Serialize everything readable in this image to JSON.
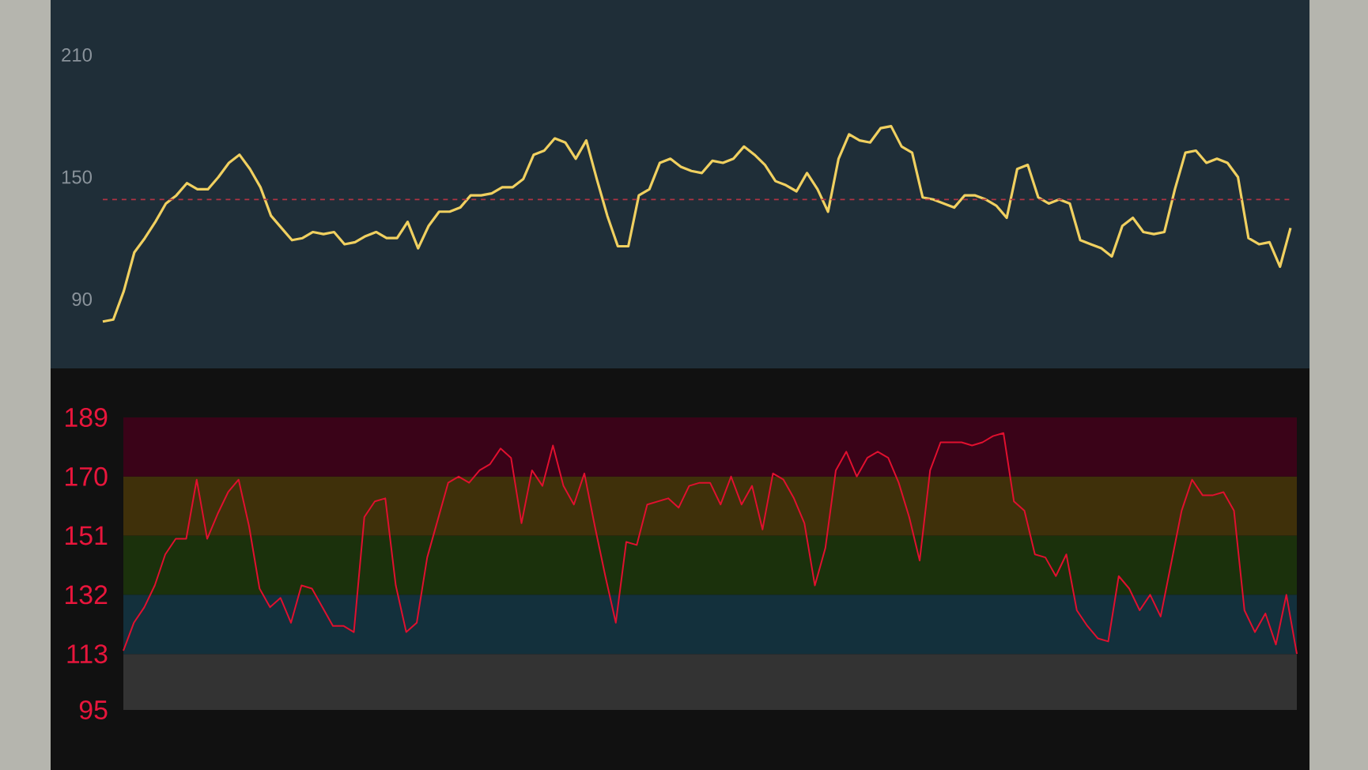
{
  "chart_data": [
    {
      "type": "line",
      "ylim": [
        56,
        237
      ],
      "yticks": [
        90,
        150,
        210
      ],
      "tick_labels": "y",
      "categories": [
        null,
        null,
        null,
        null,
        null,
        null,
        null,
        null,
        null,
        null,
        null,
        null,
        null,
        null,
        null,
        null,
        null,
        null,
        null,
        null,
        null,
        null,
        null,
        null,
        null,
        null,
        null,
        null,
        null,
        null,
        null,
        null,
        null,
        null,
        null,
        null,
        null,
        null,
        null,
        null,
        null,
        null,
        null,
        null,
        null,
        null,
        null,
        null,
        null,
        null,
        null,
        null,
        null,
        null,
        null,
        null,
        null,
        null,
        null,
        null,
        null,
        null,
        null,
        null,
        null,
        null,
        null,
        null,
        null,
        null,
        null,
        null,
        null,
        null,
        null,
        null,
        null,
        null,
        null,
        null,
        null,
        null,
        null,
        null,
        null,
        null,
        null,
        null,
        null,
        null,
        null,
        null,
        null,
        null,
        null,
        null,
        null,
        null,
        null,
        null,
        null,
        null,
        null,
        null,
        null,
        null,
        null,
        null,
        null,
        null,
        null,
        null,
        null,
        null
      ],
      "series": [
        {
          "color": "#f0d060",
          "values": [
            79,
            80,
            94,
            113,
            120,
            128,
            137,
            141,
            147,
            144,
            144,
            150,
            157,
            161,
            154,
            145,
            131,
            125,
            119,
            120,
            123,
            122,
            123,
            117,
            118,
            121,
            123,
            120,
            120,
            128,
            115,
            126,
            133,
            133,
            135,
            141,
            141,
            142,
            145,
            145,
            149,
            161,
            163,
            169,
            167,
            159,
            168,
            149,
            131,
            116,
            116,
            141,
            144,
            157,
            159,
            155,
            153,
            152,
            158,
            157,
            159,
            165,
            161,
            156,
            148,
            146,
            143,
            152,
            144,
            133,
            159,
            171,
            168,
            167,
            174,
            175,
            165,
            162,
            140,
            139,
            137,
            135,
            141,
            141,
            139,
            136,
            130,
            154,
            156,
            140,
            137,
            139,
            137,
            119,
            117,
            115,
            111,
            126,
            130,
            123,
            122,
            123,
            144,
            162,
            163,
            157,
            159,
            157,
            150,
            120,
            117,
            118,
            106,
            125
          ]
        }
      ],
      "ref_lines": [
        {
          "axis": "y",
          "value": 139,
          "color": "#b03444",
          "line_style": "dashed"
        }
      ]
    },
    {
      "type": "line",
      "ylim": [
        95,
        189
      ],
      "yticks": [
        95,
        113,
        132,
        151,
        170,
        189
      ],
      "tick_labels": "y",
      "categories": [
        null,
        null,
        null,
        null,
        null,
        null,
        null,
        null,
        null,
        null,
        null,
        null,
        null,
        null,
        null,
        null,
        null,
        null,
        null,
        null,
        null,
        null,
        null,
        null,
        null,
        null,
        null,
        null,
        null,
        null,
        null,
        null,
        null,
        null,
        null,
        null,
        null,
        null,
        null,
        null,
        null,
        null,
        null,
        null,
        null,
        null,
        null,
        null,
        null,
        null,
        null,
        null,
        null,
        null,
        null,
        null,
        null,
        null,
        null,
        null,
        null,
        null,
        null,
        null,
        null,
        null,
        null,
        null,
        null,
        null,
        null,
        null,
        null,
        null,
        null,
        null,
        null,
        null,
        null,
        null,
        null,
        null,
        null,
        null,
        null,
        null,
        null,
        null,
        null,
        null,
        null,
        null,
        null,
        null,
        null,
        null,
        null,
        null,
        null,
        null,
        null,
        null,
        null,
        null,
        null,
        null,
        null,
        null,
        null,
        null,
        null,
        null,
        null
      ],
      "series": [
        {
          "color": "#e0102f",
          "values": [
            114,
            123,
            128,
            135,
            145,
            150,
            150,
            169,
            150,
            158,
            165,
            169,
            154,
            134,
            128,
            131,
            123,
            135,
            134,
            128,
            122,
            122,
            120,
            157,
            162,
            163,
            135,
            120,
            123,
            144,
            156,
            168,
            170,
            168,
            172,
            174,
            179,
            176,
            155,
            172,
            167,
            180,
            167,
            161,
            171,
            154,
            138,
            123,
            149,
            148,
            161,
            162,
            163,
            160,
            167,
            168,
            168,
            161,
            170,
            161,
            167,
            153,
            171,
            169,
            163,
            155,
            135,
            147,
            172,
            178,
            170,
            176,
            178,
            176,
            168,
            157,
            143,
            172,
            181,
            181,
            181,
            180,
            181,
            183,
            184,
            162,
            159,
            145,
            144,
            138,
            145,
            127,
            122,
            118,
            117,
            138,
            134,
            127,
            132,
            125,
            142,
            159,
            169,
            164,
            164,
            165,
            159,
            127,
            120,
            126,
            116,
            132,
            113
          ]
        }
      ],
      "bands": [
        {
          "axis": "y",
          "from": 95,
          "to": 113,
          "color": "#333333"
        },
        {
          "axis": "y",
          "from": 113,
          "to": 132,
          "color": "#13303c"
        },
        {
          "axis": "y",
          "from": 132,
          "to": 151,
          "color": "#1b310c"
        },
        {
          "axis": "y",
          "from": 151,
          "to": 170,
          "color": "#3f300a"
        },
        {
          "axis": "y",
          "from": 170,
          "to": 189,
          "color": "#3a0318"
        }
      ]
    }
  ]
}
